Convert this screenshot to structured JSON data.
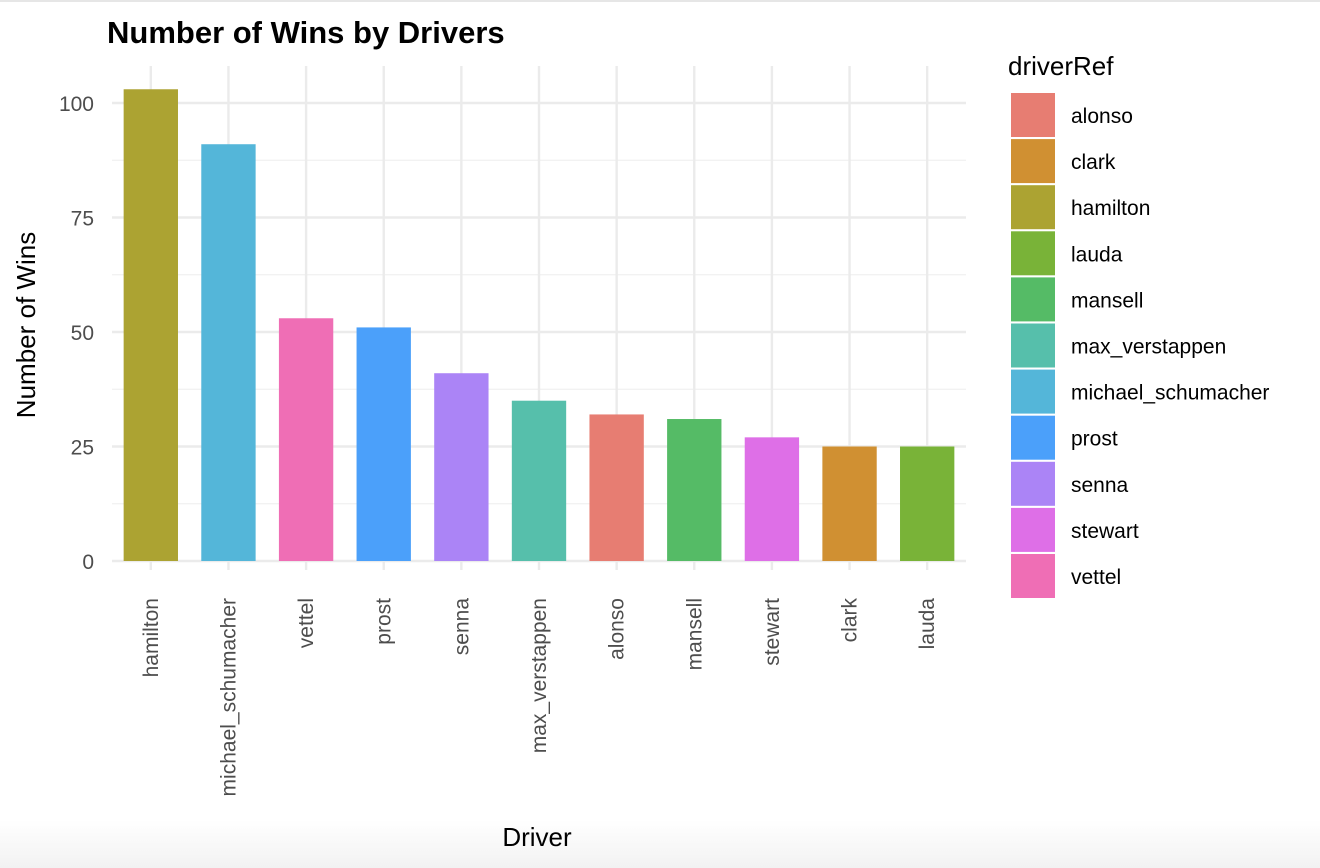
{
  "chart_data": {
    "type": "bar",
    "title": "Number of Wins by Drivers",
    "xlabel": "Driver",
    "ylabel": "Number of Wins",
    "categories": [
      "hamilton",
      "michael_schumacher",
      "vettel",
      "prost",
      "senna",
      "max_verstappen",
      "alonso",
      "mansell",
      "stewart",
      "clark",
      "lauda"
    ],
    "values": [
      103,
      91,
      53,
      51,
      41,
      35,
      32,
      31,
      27,
      25,
      25
    ],
    "ylim": [
      0,
      107
    ],
    "yticks": [
      0,
      25,
      50,
      75,
      100
    ],
    "grid": true,
    "x_tick_rotation": -90,
    "legend": {
      "title": "driverRef",
      "placement": "right",
      "entries": [
        {
          "label": "alonso",
          "color": "#E77D72"
        },
        {
          "label": "clark",
          "color": "#D09032"
        },
        {
          "label": "hamilton",
          "color": "#ACA332"
        },
        {
          "label": "lauda",
          "color": "#79B338"
        },
        {
          "label": "mansell",
          "color": "#55BB66"
        },
        {
          "label": "max_verstappen",
          "color": "#56BFAB"
        },
        {
          "label": "michael_schumacher",
          "color": "#54B6D9"
        },
        {
          "label": "prost",
          "color": "#4BA0FA"
        },
        {
          "label": "senna",
          "color": "#AB84F6"
        },
        {
          "label": "stewart",
          "color": "#DE6FE7"
        },
        {
          "label": "vettel",
          "color": "#EF6EB5"
        }
      ]
    }
  }
}
